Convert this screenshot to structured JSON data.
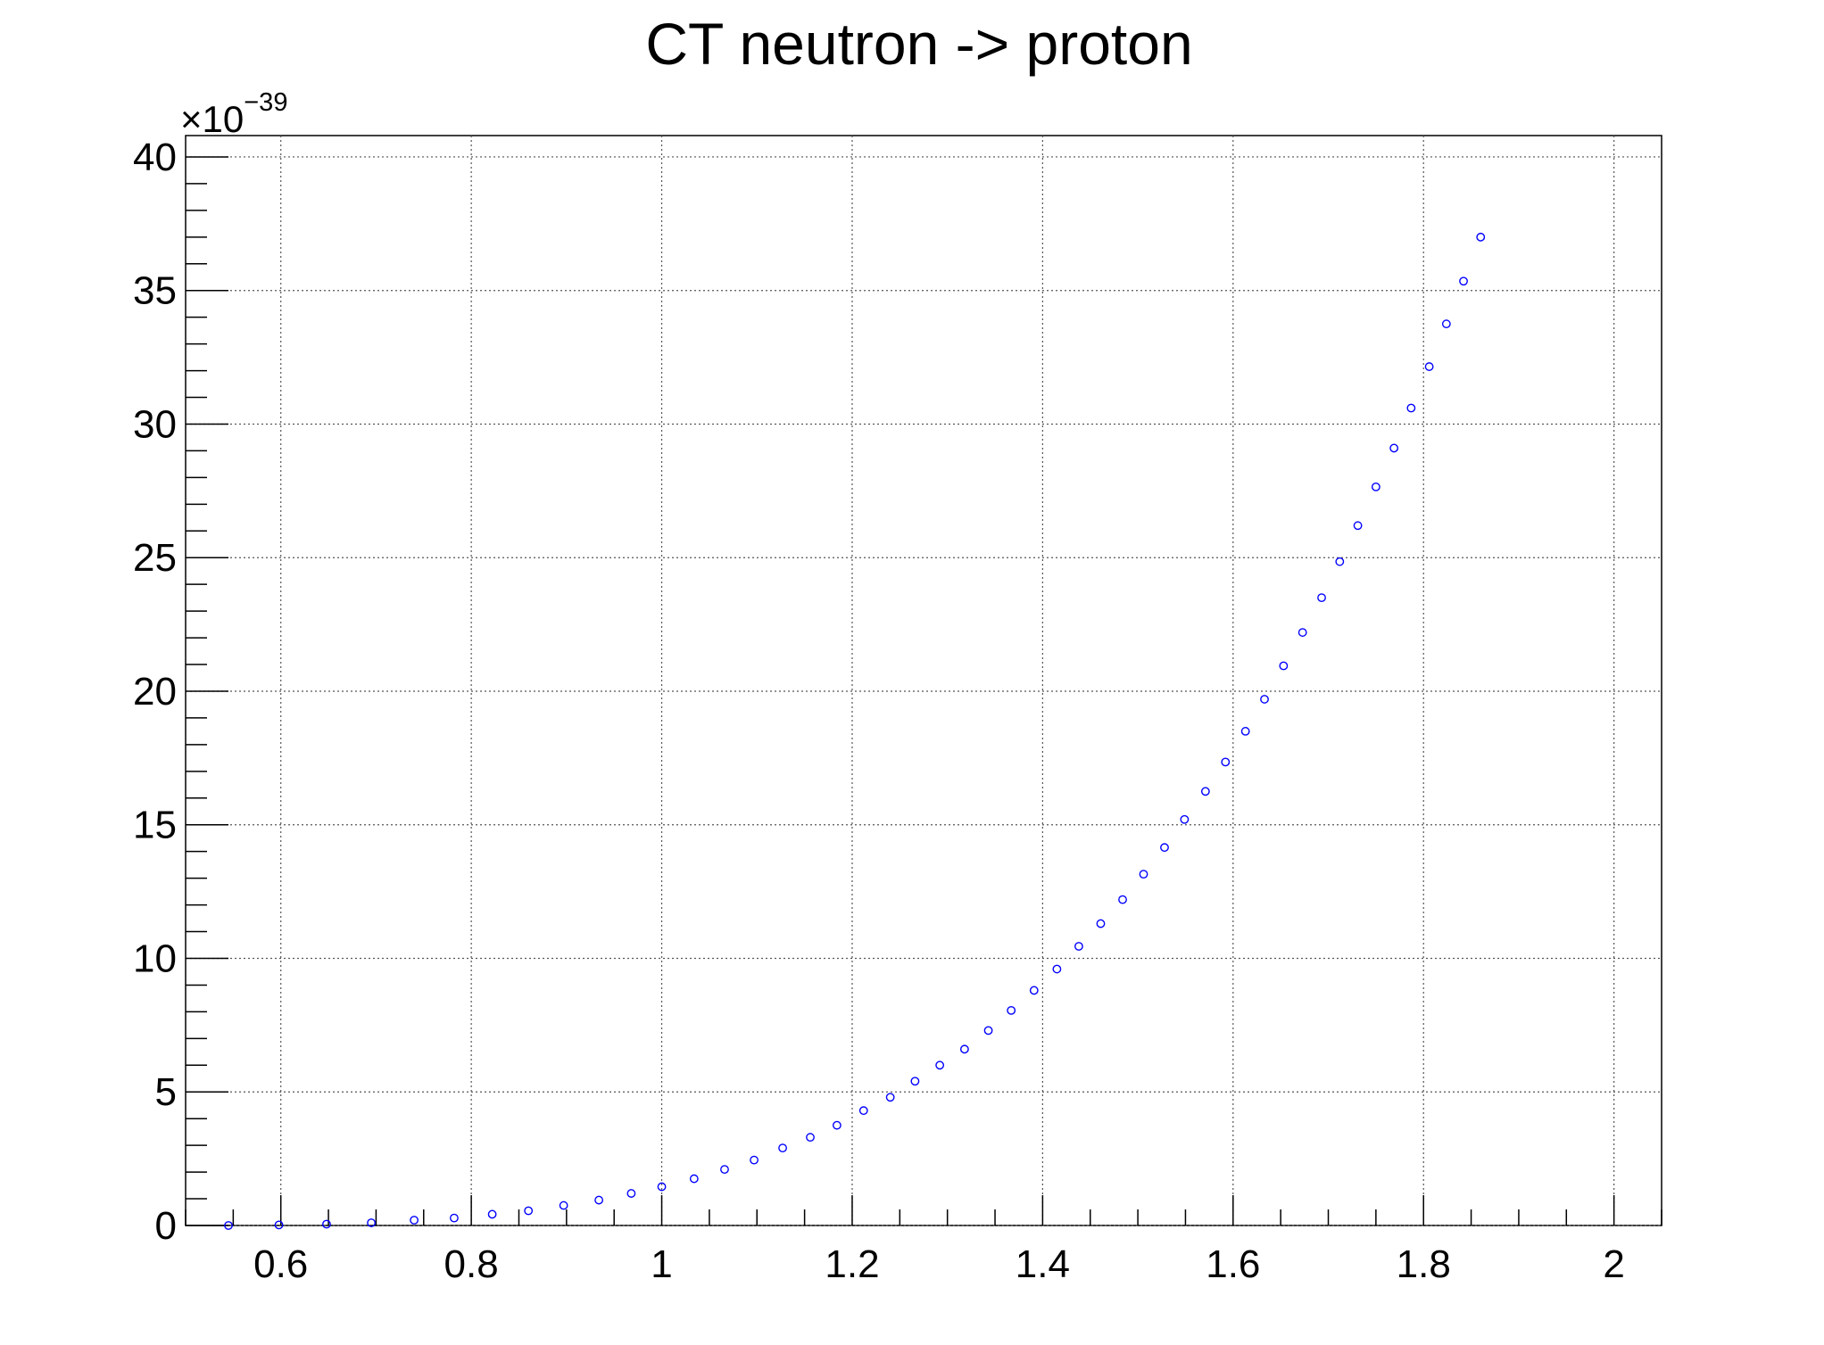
{
  "chart_data": {
    "type": "scatter",
    "title": "CT neutron -> proton",
    "xlabel": "",
    "ylabel": "",
    "xlim": [
      0.5,
      2.05
    ],
    "ylim": [
      0,
      40.8
    ],
    "grid": true,
    "y_multiplier": {
      "base": "×10",
      "exponent": "−39"
    },
    "x_ticks": [
      0.6,
      0.8,
      1,
      1.2,
      1.4,
      1.6,
      1.8,
      2
    ],
    "x_tick_labels": [
      "0.6",
      "0.8",
      "1",
      "1.2",
      "1.4",
      "1.6",
      "1.8",
      "2"
    ],
    "y_ticks": [
      0,
      5,
      10,
      15,
      20,
      25,
      30,
      35,
      40
    ],
    "y_tick_labels": [
      "0",
      "5",
      "10",
      "15",
      "20",
      "25",
      "30",
      "35",
      "40"
    ],
    "marker_color": "#0000ff",
    "series": [
      {
        "x": [
          0.545,
          0.598,
          0.648,
          0.695,
          0.74,
          0.782,
          0.822,
          0.86,
          0.897,
          0.934,
          0.968,
          1.0,
          1.034,
          1.066,
          1.097,
          1.127,
          1.156,
          1.184,
          1.212,
          1.24,
          1.266,
          1.292,
          1.318,
          1.343,
          1.367,
          1.391,
          1.415,
          1.438,
          1.461,
          1.484,
          1.506,
          1.528,
          1.549,
          1.571,
          1.592,
          1.613,
          1.633,
          1.653,
          1.673,
          1.693,
          1.712,
          1.731,
          1.75,
          1.769,
          1.787,
          1.806,
          1.824,
          1.842,
          1.86
        ],
        "y": [
          0.0,
          0.02,
          0.05,
          0.1,
          0.2,
          0.28,
          0.42,
          0.55,
          0.75,
          0.95,
          1.2,
          1.45,
          1.75,
          2.1,
          2.45,
          2.9,
          3.3,
          3.75,
          4.3,
          4.8,
          5.4,
          6.0,
          6.6,
          7.3,
          8.05,
          8.8,
          9.6,
          10.45,
          11.3,
          12.2,
          13.15,
          14.15,
          15.2,
          16.25,
          17.35,
          18.5,
          19.7,
          20.95,
          22.2,
          23.5,
          24.85,
          26.2,
          27.65,
          29.1,
          30.6,
          32.15,
          33.75,
          35.35,
          37.0
        ]
      }
    ]
  }
}
